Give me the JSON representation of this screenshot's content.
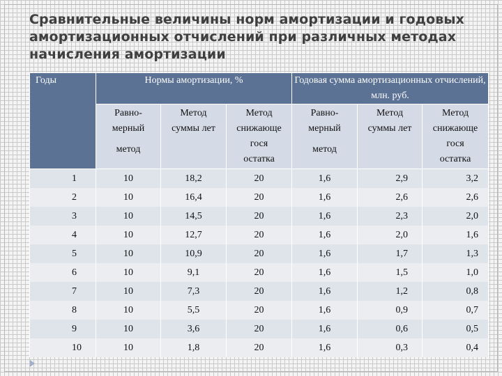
{
  "title": "Сравнительные величины норм амортизации и годовых амортизационных отчислений при различных методах начисления амортизации",
  "table": {
    "years_header": "Годы",
    "group_rates": "Нормы амортизации, %",
    "group_sums": "Годовая сумма амортизационных отчислений, млн. руб.",
    "sub": {
      "linear_l1": "Равно-",
      "linear_l2": "мерный",
      "linear_l3": "метод",
      "sum_l1": "Метод",
      "sum_l2": "суммы лет",
      "decl_l1": "Метод",
      "decl_l2": "снижающе",
      "decl_l3": "гося",
      "decl_l4": "остатка"
    },
    "rows": [
      {
        "year": "1",
        "r1": "10",
        "r2": "18,2",
        "r3": "20",
        "s1": "1,6",
        "s2": "2,9",
        "s3": "3,2"
      },
      {
        "year": "2",
        "r1": "10",
        "r2": "16,4",
        "r3": "20",
        "s1": "1,6",
        "s2": "2,6",
        "s3": "2,6"
      },
      {
        "year": "3",
        "r1": "10",
        "r2": "14,5",
        "r3": "20",
        "s1": "1,6",
        "s2": "2,3",
        "s3": "2,0"
      },
      {
        "year": "4",
        "r1": "10",
        "r2": "12,7",
        "r3": "20",
        "s1": "1,6",
        "s2": "2,0",
        "s3": "1,6"
      },
      {
        "year": "5",
        "r1": "10",
        "r2": "10,9",
        "r3": "20",
        "s1": "1,6",
        "s2": "1,7",
        "s3": "1,3"
      },
      {
        "year": "6",
        "r1": "10",
        "r2": "9,1",
        "r3": "20",
        "s1": "1,6",
        "s2": "1,5",
        "s3": "1,0"
      },
      {
        "year": "7",
        "r1": "10",
        "r2": "7,3",
        "r3": "20",
        "s1": "1,6",
        "s2": "1,2",
        "s3": "0,8"
      },
      {
        "year": "8",
        "r1": "10",
        "r2": "5,5",
        "r3": "20",
        "s1": "1,6",
        "s2": "0,9",
        "s3": "0,7"
      },
      {
        "year": "9",
        "r1": "10",
        "r2": "3,6",
        "r3": "20",
        "s1": "1,6",
        "s2": "0,6",
        "s3": "0,5"
      },
      {
        "year": "10",
        "r1": "10",
        "r2": "1,8",
        "r3": "20",
        "s1": "1,6",
        "s2": "0,3",
        "s3": "0,4"
      }
    ]
  },
  "colors": {
    "header_dark": "#5b7295",
    "header_light": "#d5dbe6",
    "row_odd": "#dfe3ea",
    "row_even": "#ecedf1",
    "title": "#3f3f3f"
  },
  "icons": {
    "slide_corner": "triangle-arrow-icon"
  }
}
